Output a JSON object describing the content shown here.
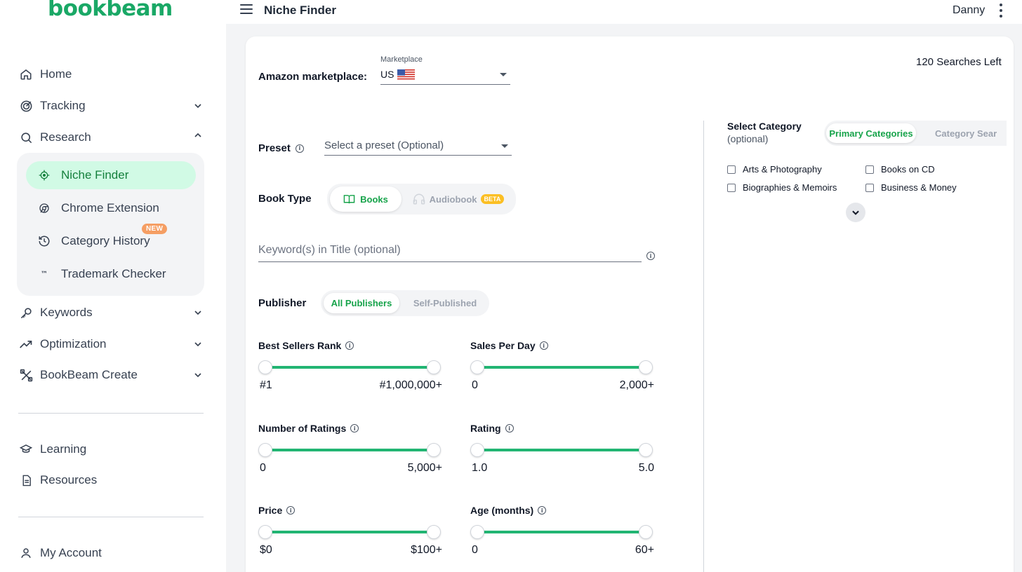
{
  "brand": {
    "logo_text": "bookbeam",
    "accent": "#1aa866"
  },
  "sidebar": {
    "items": [
      {
        "label": "Home",
        "icon": "home-icon"
      },
      {
        "label": "Tracking",
        "icon": "target-icon"
      },
      {
        "label": "Research",
        "icon": "search-icon"
      },
      {
        "label": "Keywords",
        "icon": "key-icon"
      },
      {
        "label": "Optimization",
        "icon": "trending-up-icon"
      },
      {
        "label": "BookBeam Create",
        "icon": "create-tools-icon"
      },
      {
        "label": "Learning",
        "icon": "graduation-cap-icon"
      },
      {
        "label": "Resources",
        "icon": "document-icon"
      },
      {
        "label": "My Account",
        "icon": "user-icon"
      }
    ],
    "research_sub": [
      {
        "label": "Niche Finder",
        "icon": "crosshair-icon",
        "active": true
      },
      {
        "label": "Chrome Extension",
        "icon": "chrome-icon"
      },
      {
        "label": "Category History",
        "icon": "history-icon"
      },
      {
        "label": "Trademark Checker",
        "icon": "trademark-icon"
      }
    ],
    "new_badge": "NEW"
  },
  "topbar": {
    "title": "Niche Finder",
    "user": "Danny"
  },
  "main": {
    "searches_left": "120 Searches Left",
    "marketplace": {
      "label": "Amazon marketplace:",
      "field_label": "Marketplace",
      "value": "US"
    },
    "preset": {
      "label": "Preset",
      "placeholder": "Select a preset (Optional)"
    },
    "book_type": {
      "label": "Book Type",
      "options": [
        "Books",
        "Audiobook"
      ],
      "selected": "Books",
      "beta": "BETA"
    },
    "keyword": {
      "placeholder": "Keyword(s) in Title (optional)"
    },
    "publisher": {
      "label": "Publisher",
      "options": [
        "All Publishers",
        "Self-Published"
      ],
      "selected": "All Publishers"
    },
    "sliders": [
      {
        "title": "Best Sellers Rank",
        "min": "#1",
        "max": "#1,000,000+"
      },
      {
        "title": "Sales Per Day",
        "min": "0",
        "max": "2,000+"
      },
      {
        "title": "Number of Ratings",
        "min": "0",
        "max": "5,000+"
      },
      {
        "title": "Rating",
        "min": "1.0",
        "max": "5.0"
      },
      {
        "title": "Price",
        "min": "$0",
        "max": "$100+"
      },
      {
        "title": "Age (months)",
        "min": "0",
        "max": "60+"
      }
    ],
    "category": {
      "title": "Select Category",
      "subtitle": "(optional)",
      "tabs": [
        "Primary Categories",
        "Category Sear"
      ],
      "items": [
        "Arts & Photography",
        "Books on CD",
        "Biographies & Memoirs",
        "Business & Money"
      ]
    }
  }
}
